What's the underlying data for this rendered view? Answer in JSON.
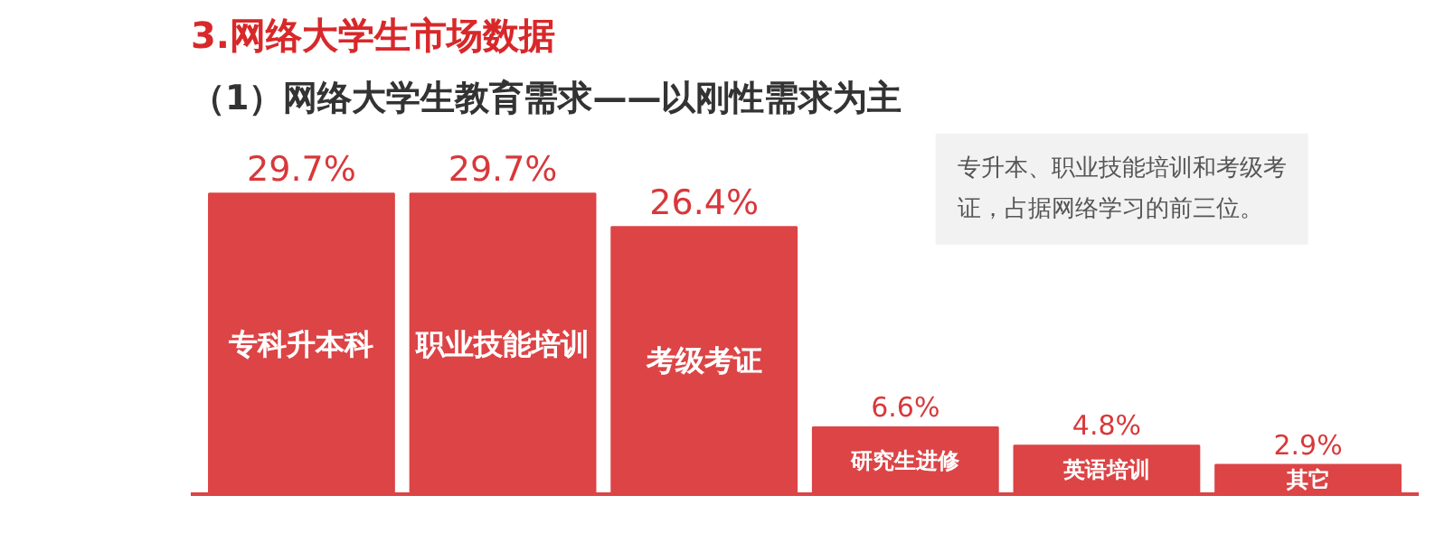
{
  "chart_data": {
    "type": "bar",
    "title": "3.网络大学生市场数据",
    "subtitle": "（1）网络大学生教育需求——以刚性需求为主",
    "categories": [
      "专科升本科",
      "职业技能培训",
      "考级考证",
      "研究生进修",
      "英语培训",
      "其它"
    ],
    "values": [
      29.7,
      29.7,
      26.4,
      6.6,
      4.8,
      2.9
    ],
    "value_labels": [
      "29.7%",
      "29.7%",
      "26.4%",
      "6.6%",
      "4.8%",
      "2.9%"
    ],
    "color": "#dc4446",
    "annotations": [
      "专升本、职业技能培训和考级考证，占据网络学习的前三位。"
    ],
    "grid": false
  }
}
